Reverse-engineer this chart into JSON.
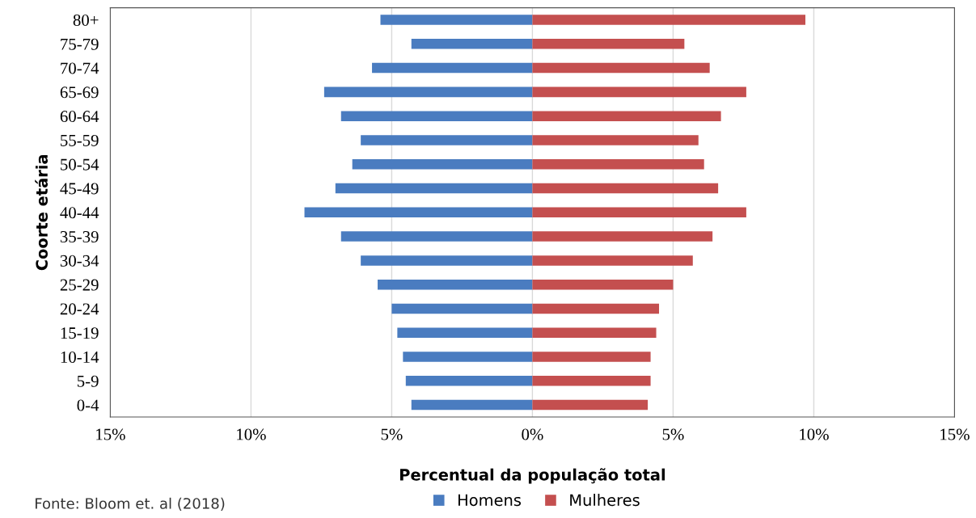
{
  "chart_data": {
    "type": "bar",
    "orientation": "horizontal",
    "stacked": true,
    "xlabel": "Percentual da população total",
    "ylabel": "Coorte etária",
    "categories": [
      "80+",
      "75-79",
      "70-74",
      "65-69",
      "60-64",
      "55-59",
      "50-54",
      "45-49",
      "40-44",
      "35-39",
      "30-34",
      "25-29",
      "20-24",
      "15-19",
      "10-14",
      "5-9",
      "0-4"
    ],
    "series": [
      {
        "name": "Homens",
        "color": "#4a7cc0",
        "values": [
          -5.4,
          -4.3,
          -5.7,
          -7.4,
          -6.8,
          -6.1,
          -6.4,
          -7.0,
          -8.1,
          -6.8,
          -6.1,
          -5.5,
          -5.0,
          -4.8,
          -4.6,
          -4.5,
          -4.3
        ]
      },
      {
        "name": "Mulheres",
        "color": "#c44f4f",
        "values": [
          9.7,
          5.4,
          6.3,
          7.6,
          6.7,
          5.9,
          6.1,
          6.6,
          7.6,
          6.4,
          5.7,
          5.0,
          4.5,
          4.4,
          4.2,
          4.2,
          4.1
        ]
      }
    ],
    "xlim": [
      -15,
      15
    ],
    "xticks": [
      {
        "value": -15,
        "label": "15%"
      },
      {
        "value": -10,
        "label": "10%"
      },
      {
        "value": -5,
        "label": "5%"
      },
      {
        "value": 0,
        "label": "0%"
      },
      {
        "value": 5,
        "label": "5%"
      },
      {
        "value": 10,
        "label": "10%"
      },
      {
        "value": 15,
        "label": "15%"
      }
    ],
    "grid": "x",
    "legend": "bottom",
    "annotations": [
      "Fonte: Bloom et. al (2018)"
    ]
  }
}
